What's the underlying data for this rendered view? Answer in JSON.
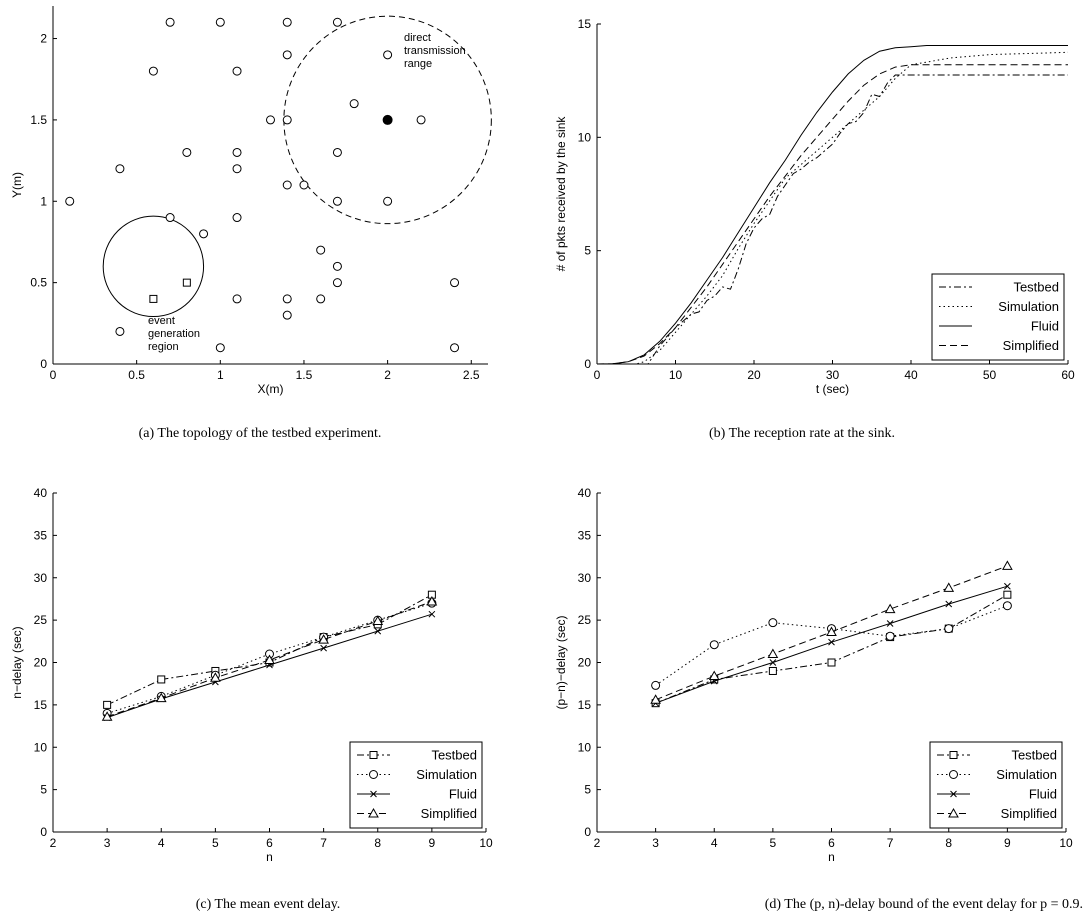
{
  "chart_data": [
    {
      "type": "scatter",
      "caption": "(a) The topology of the testbed experiment.",
      "xlabel": "X(m)",
      "ylabel": "Y(m)",
      "xlim": [
        0,
        2.6
      ],
      "ylim": [
        0,
        2.2
      ],
      "xticks": [
        0,
        0.5,
        1,
        1.5,
        2,
        2.5
      ],
      "xtick_labels": [
        "0",
        "0.5",
        "1",
        "1.5",
        "2",
        "2.5"
      ],
      "yticks": [
        0,
        0.5,
        1,
        1.5,
        2
      ],
      "ytick_labels": [
        "0",
        "0.5",
        "1",
        "1.5",
        "2"
      ],
      "nodes": [
        {
          "x": 0.7,
          "y": 2.1
        },
        {
          "x": 1.0,
          "y": 2.1
        },
        {
          "x": 1.4,
          "y": 2.1
        },
        {
          "x": 1.7,
          "y": 2.1
        },
        {
          "x": 0.6,
          "y": 1.8
        },
        {
          "x": 1.1,
          "y": 1.8
        },
        {
          "x": 1.4,
          "y": 1.9
        },
        {
          "x": 2.0,
          "y": 1.9
        },
        {
          "x": 1.8,
          "y": 1.6
        },
        {
          "x": 1.3,
          "y": 1.5
        },
        {
          "x": 1.4,
          "y": 1.5
        },
        {
          "x": 2.2,
          "y": 1.5
        },
        {
          "x": 0.8,
          "y": 1.3
        },
        {
          "x": 1.1,
          "y": 1.3
        },
        {
          "x": 1.7,
          "y": 1.3
        },
        {
          "x": 0.4,
          "y": 1.2
        },
        {
          "x": 1.1,
          "y": 1.2
        },
        {
          "x": 1.4,
          "y": 1.1
        },
        {
          "x": 1.5,
          "y": 1.1
        },
        {
          "x": 0.1,
          "y": 1.0
        },
        {
          "x": 1.7,
          "y": 1.0
        },
        {
          "x": 2.0,
          "y": 1.0
        },
        {
          "x": 0.7,
          "y": 0.9
        },
        {
          "x": 1.1,
          "y": 0.9
        },
        {
          "x": 0.9,
          "y": 0.8
        },
        {
          "x": 1.6,
          "y": 0.7
        },
        {
          "x": 1.7,
          "y": 0.6
        },
        {
          "x": 1.7,
          "y": 0.5
        },
        {
          "x": 2.4,
          "y": 0.5
        },
        {
          "x": 1.1,
          "y": 0.4
        },
        {
          "x": 1.4,
          "y": 0.4
        },
        {
          "x": 1.6,
          "y": 0.4
        },
        {
          "x": 1.4,
          "y": 0.3
        },
        {
          "x": 0.4,
          "y": 0.2
        },
        {
          "x": 1.0,
          "y": 0.1
        },
        {
          "x": 2.4,
          "y": 0.1
        }
      ],
      "square_nodes": [
        {
          "x": 0.6,
          "y": 0.4
        },
        {
          "x": 0.8,
          "y": 0.5
        }
      ],
      "sink": {
        "x": 2.0,
        "y": 1.5
      },
      "event_region": {
        "cx": 0.6,
        "cy": 0.6,
        "r": 0.3,
        "label": [
          "event",
          "generation",
          "region"
        ]
      },
      "transmission_range": {
        "cx": 2.0,
        "cy": 1.5,
        "r": 0.62,
        "label": [
          "direct",
          "transmission",
          "range"
        ]
      }
    },
    {
      "type": "line",
      "caption": "(b) The reception rate at the sink.",
      "xlabel": "t (sec)",
      "ylabel": "# of pkts received by the sink",
      "xlim": [
        0,
        60
      ],
      "ylim": [
        0,
        15
      ],
      "xticks": [
        0,
        10,
        20,
        30,
        40,
        50,
        60
      ],
      "xtick_labels": [
        "0",
        "10",
        "20",
        "30",
        "40",
        "50",
        "60"
      ],
      "yticks": [
        0,
        5,
        10,
        15
      ],
      "ytick_labels": [
        "0",
        "5",
        "10",
        "15"
      ],
      "legend_position": "bottom-right",
      "series": [
        {
          "name": "Testbed",
          "x": [
            0,
            6.5,
            8,
            10,
            12,
            13,
            14,
            15,
            16,
            17,
            18,
            19,
            20,
            21,
            22,
            23,
            24,
            25,
            26,
            27,
            28,
            29,
            30,
            31,
            32,
            33,
            34,
            35,
            36,
            37,
            38,
            39,
            40,
            45,
            50,
            55,
            60
          ],
          "y": [
            0,
            0,
            0.8,
            1.6,
            2.2,
            2.3,
            2.8,
            3.0,
            3.4,
            3.3,
            4.2,
            5.3,
            6.0,
            6.4,
            6.6,
            7.4,
            7.9,
            8.4,
            8.6,
            8.9,
            9.1,
            9.4,
            9.7,
            10.2,
            10.6,
            10.7,
            11.1,
            11.9,
            11.8,
            12.4,
            12.75,
            12.75,
            12.75,
            12.75,
            12.75,
            12.75,
            12.75
          ]
        },
        {
          "name": "Simulation",
          "x": [
            0,
            5,
            6,
            8,
            10,
            12,
            14,
            16,
            18,
            20,
            22,
            24,
            26,
            28,
            30,
            32,
            34,
            36,
            38,
            40,
            45,
            50,
            55,
            60
          ],
          "y": [
            0,
            0,
            0.1,
            0.6,
            1.4,
            2.2,
            3.0,
            3.9,
            5.1,
            6.2,
            7.2,
            8.2,
            8.8,
            9.4,
            10.0,
            10.6,
            11.2,
            11.8,
            12.6,
            13.2,
            13.5,
            13.65,
            13.7,
            13.75
          ]
        },
        {
          "name": "Fluid",
          "x": [
            0,
            2,
            4,
            6,
            8,
            10,
            12,
            14,
            16,
            18,
            20,
            22,
            24,
            26,
            28,
            30,
            32,
            34,
            36,
            38,
            40,
            42,
            45,
            50,
            55,
            60
          ],
          "y": [
            0,
            0.01,
            0.1,
            0.4,
            1.0,
            1.8,
            2.7,
            3.7,
            4.7,
            5.8,
            6.9,
            8.0,
            9.0,
            10.1,
            11.1,
            12.0,
            12.8,
            13.4,
            13.8,
            13.95,
            14.0,
            14.05,
            14.05,
            14.05,
            14.05,
            14.05
          ]
        },
        {
          "name": "Simplified",
          "x": [
            0,
            2,
            4,
            6,
            8,
            10,
            12,
            14,
            16,
            18,
            20,
            22,
            24,
            26,
            28,
            30,
            32,
            34,
            36,
            38,
            40,
            45,
            50,
            55,
            60
          ],
          "y": [
            0,
            0.01,
            0.1,
            0.35,
            0.9,
            1.6,
            2.5,
            3.4,
            4.4,
            5.4,
            6.4,
            7.4,
            8.3,
            9.2,
            10.0,
            10.8,
            11.6,
            12.3,
            12.8,
            13.1,
            13.2,
            13.2,
            13.2,
            13.2,
            13.2
          ]
        }
      ]
    },
    {
      "type": "line",
      "caption": "(c) The mean event delay.",
      "xlabel": "n",
      "ylabel": "n−delay (sec)",
      "xlim": [
        2,
        10
      ],
      "ylim": [
        0,
        40
      ],
      "xticks": [
        2,
        3,
        4,
        5,
        6,
        7,
        8,
        9,
        10
      ],
      "xtick_labels": [
        "2",
        "3",
        "4",
        "5",
        "6",
        "7",
        "8",
        "9",
        "10"
      ],
      "yticks": [
        0,
        5,
        10,
        15,
        20,
        25,
        30,
        35,
        40
      ],
      "ytick_labels": [
        "0",
        "5",
        "10",
        "15",
        "20",
        "25",
        "30",
        "35",
        "40"
      ],
      "legend_position": "bottom-right",
      "x": [
        3,
        4,
        5,
        6,
        7,
        8,
        9
      ],
      "series": [
        {
          "name": "Testbed",
          "values": [
            15,
            18,
            19,
            20,
            23,
            24.5,
            28
          ]
        },
        {
          "name": "Simulation",
          "values": [
            14,
            16,
            18.5,
            21,
            23,
            25,
            27
          ]
        },
        {
          "name": "Fluid",
          "values": [
            13.5,
            15.7,
            17.7,
            19.7,
            21.7,
            23.7,
            25.7
          ]
        },
        {
          "name": "Simplified",
          "values": [
            13.6,
            15.8,
            18.2,
            20.3,
            22.7,
            24.9,
            27.2
          ]
        }
      ]
    },
    {
      "type": "line",
      "caption": "(d) The (p, n)-delay bound of the event delay for p = 0.9.",
      "xlabel": "n",
      "ylabel": "(p−n)−delay (sec)",
      "xlim": [
        2,
        10
      ],
      "ylim": [
        0,
        40
      ],
      "xticks": [
        2,
        3,
        4,
        5,
        6,
        7,
        8,
        9,
        10
      ],
      "xtick_labels": [
        "2",
        "3",
        "4",
        "5",
        "6",
        "7",
        "8",
        "9",
        "10"
      ],
      "yticks": [
        0,
        5,
        10,
        15,
        20,
        25,
        30,
        35,
        40
      ],
      "ytick_labels": [
        "0",
        "5",
        "10",
        "15",
        "20",
        "25",
        "30",
        "35",
        "40"
      ],
      "legend_position": "bottom-right",
      "x": [
        3,
        4,
        5,
        6,
        7,
        8,
        9
      ],
      "series": [
        {
          "name": "Testbed",
          "values": [
            15.2,
            18,
            19,
            20,
            23,
            24,
            28
          ]
        },
        {
          "name": "Simulation",
          "values": [
            17.3,
            22.1,
            24.7,
            24,
            23.1,
            24,
            26.7
          ]
        },
        {
          "name": "Fluid",
          "values": [
            15.2,
            17.8,
            20,
            22.4,
            24.6,
            26.9,
            29
          ]
        },
        {
          "name": "Simplified",
          "values": [
            15.6,
            18.4,
            21,
            23.6,
            26.3,
            28.8,
            31.4
          ]
        }
      ]
    }
  ]
}
